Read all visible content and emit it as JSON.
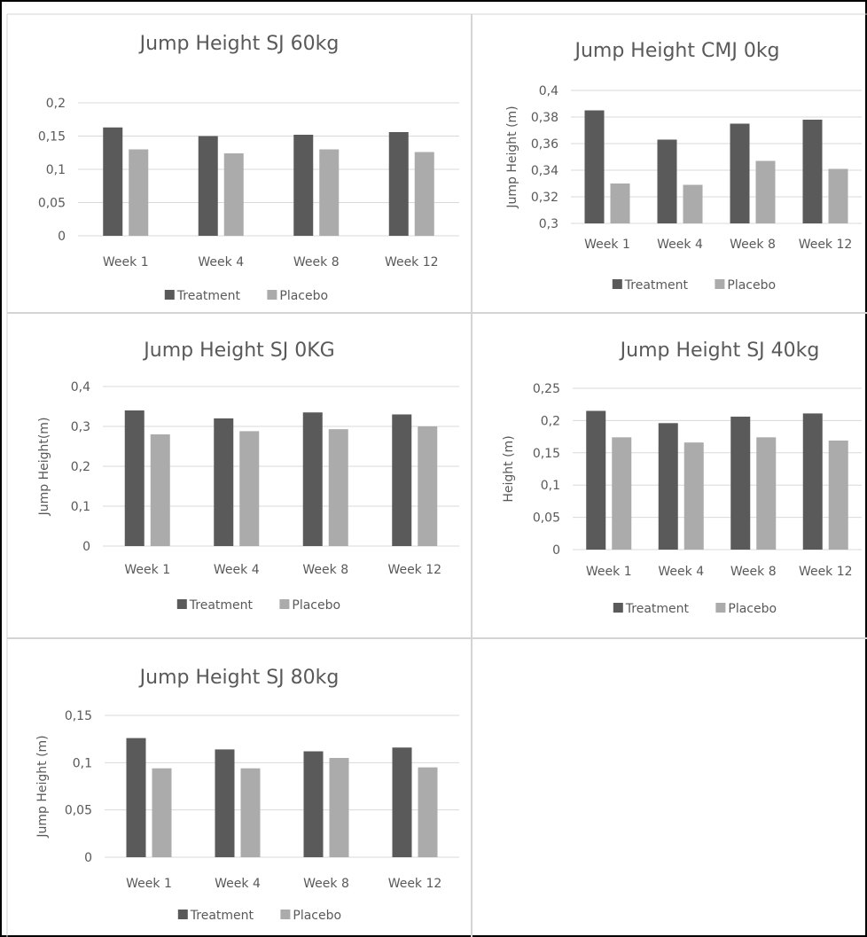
{
  "colors": {
    "treatment": "#5a5a5a",
    "placebo": "#ababab"
  },
  "chart_data": [
    {
      "type": "bar",
      "title": "Jump Height SJ 60kg",
      "ylabel": "",
      "categories": [
        "Week 1",
        "Week 4",
        "Week 8",
        "Week 12"
      ],
      "series": [
        {
          "name": "Treatment",
          "values": [
            0.163,
            0.15,
            0.152,
            0.156
          ]
        },
        {
          "name": "Placebo",
          "values": [
            0.13,
            0.124,
            0.13,
            0.126
          ]
        }
      ],
      "ylim": [
        0,
        0.2
      ],
      "yticks": [
        "0",
        "0,05",
        "0,1",
        "0,15",
        "0,2"
      ],
      "grid": true,
      "legend": "bottom"
    },
    {
      "type": "bar",
      "title": "Jump Height CMJ 0kg",
      "ylabel": "Jump Height (m)",
      "categories": [
        "Week 1",
        "Week 4",
        "Week 8",
        "Week 12"
      ],
      "series": [
        {
          "name": "Treatment",
          "values": [
            0.385,
            0.363,
            0.375,
            0.378
          ]
        },
        {
          "name": "Placebo",
          "values": [
            0.33,
            0.329,
            0.347,
            0.341
          ]
        }
      ],
      "ylim": [
        0.3,
        0.4
      ],
      "yticks": [
        "0,3",
        "0,32",
        "0,34",
        "0,36",
        "0,38",
        "0,4"
      ],
      "grid": true,
      "legend": "bottom"
    },
    {
      "type": "bar",
      "title": "Jump Height SJ 0KG",
      "ylabel": "Jump Height(m)",
      "categories": [
        "Week 1",
        "Week 4",
        "Week 8",
        "Week 12"
      ],
      "series": [
        {
          "name": "Treatment",
          "values": [
            0.34,
            0.32,
            0.335,
            0.33
          ]
        },
        {
          "name": "Placebo",
          "values": [
            0.28,
            0.288,
            0.293,
            0.3
          ]
        }
      ],
      "ylim": [
        0,
        0.4
      ],
      "yticks": [
        "0",
        "0,1",
        "0,2",
        "0,3",
        "0,4"
      ],
      "grid": true,
      "legend": "bottom"
    },
    {
      "type": "bar",
      "title": "Jump Height SJ 40kg",
      "ylabel": "Height (m)",
      "categories": [
        "Week 1",
        "Week 4",
        "Week 8",
        "Week 12"
      ],
      "series": [
        {
          "name": "Treatment",
          "values": [
            0.215,
            0.196,
            0.206,
            0.211
          ]
        },
        {
          "name": "Placebo",
          "values": [
            0.174,
            0.166,
            0.174,
            0.169
          ]
        }
      ],
      "ylim": [
        0,
        0.25
      ],
      "yticks": [
        "0",
        "0,05",
        "0,1",
        "0,15",
        "0,2",
        "0,25"
      ],
      "grid": true,
      "legend": "bottom"
    },
    {
      "type": "bar",
      "title": "Jump Height SJ 80kg",
      "ylabel": "Jump Height (m)",
      "categories": [
        "Week 1",
        "Week 4",
        "Week 8",
        "Week 12"
      ],
      "series": [
        {
          "name": "Treatment",
          "values": [
            0.126,
            0.114,
            0.112,
            0.116
          ]
        },
        {
          "name": "Placebo",
          "values": [
            0.094,
            0.094,
            0.105,
            0.095
          ]
        }
      ],
      "ylim": [
        0,
        0.15
      ],
      "yticks": [
        "0",
        "0,05",
        "0,1",
        "0,15"
      ],
      "grid": true,
      "legend": "bottom"
    }
  ]
}
